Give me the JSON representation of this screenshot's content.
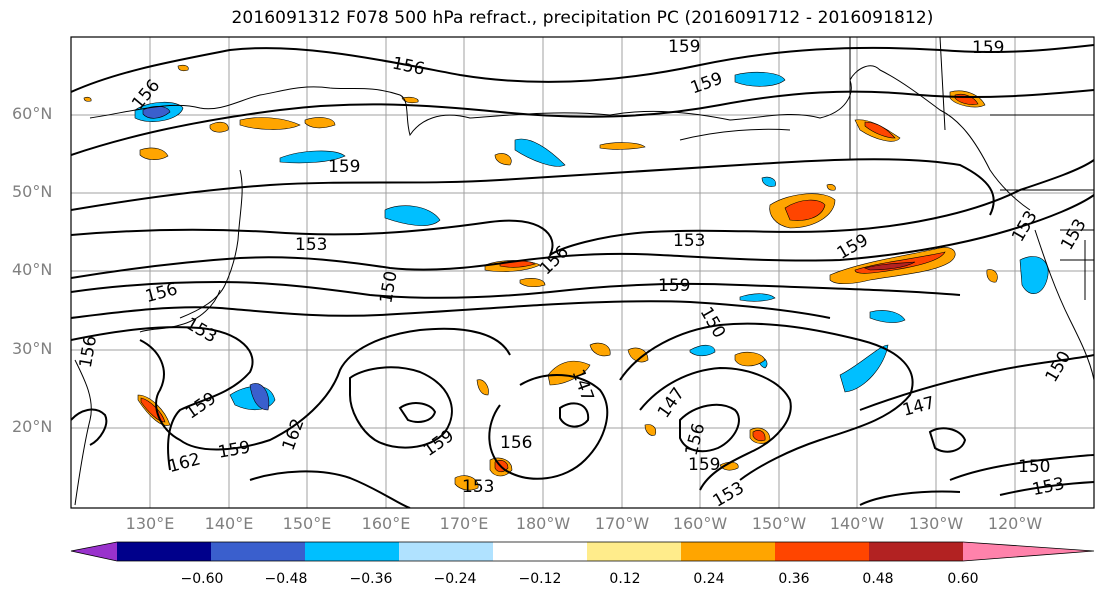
{
  "title": "2016091312 F078 500 hPa refract., precipitation PC (2016091712 - 2016091812)",
  "lat_labels": [
    "60°N",
    "50°N",
    "40°N",
    "30°N",
    "20°N"
  ],
  "lon_labels": [
    "130°E",
    "140°E",
    "150°E",
    "160°E",
    "170°E",
    "180°W",
    "170°W",
    "160°W",
    "150°W",
    "140°W",
    "130°W",
    "120°W"
  ],
  "contour_labels": {
    "c147": "147",
    "c150": "150",
    "c153": "153",
    "c156": "156",
    "c159": "159",
    "c162": "162"
  },
  "colorbar": {
    "ticks": [
      "−0.60",
      "−0.48",
      "−0.36",
      "−0.24",
      "−0.12",
      "0.12",
      "0.24",
      "0.36",
      "0.48",
      "0.60"
    ],
    "colors": [
      "#9932cc",
      "#00008b",
      "#3a5fcd",
      "#00bfff",
      "#b0e2ff",
      "#ffffff",
      "#ffec8b",
      "#ffa500",
      "#ff4500",
      "#b22222",
      "#ff82ab"
    ]
  }
}
